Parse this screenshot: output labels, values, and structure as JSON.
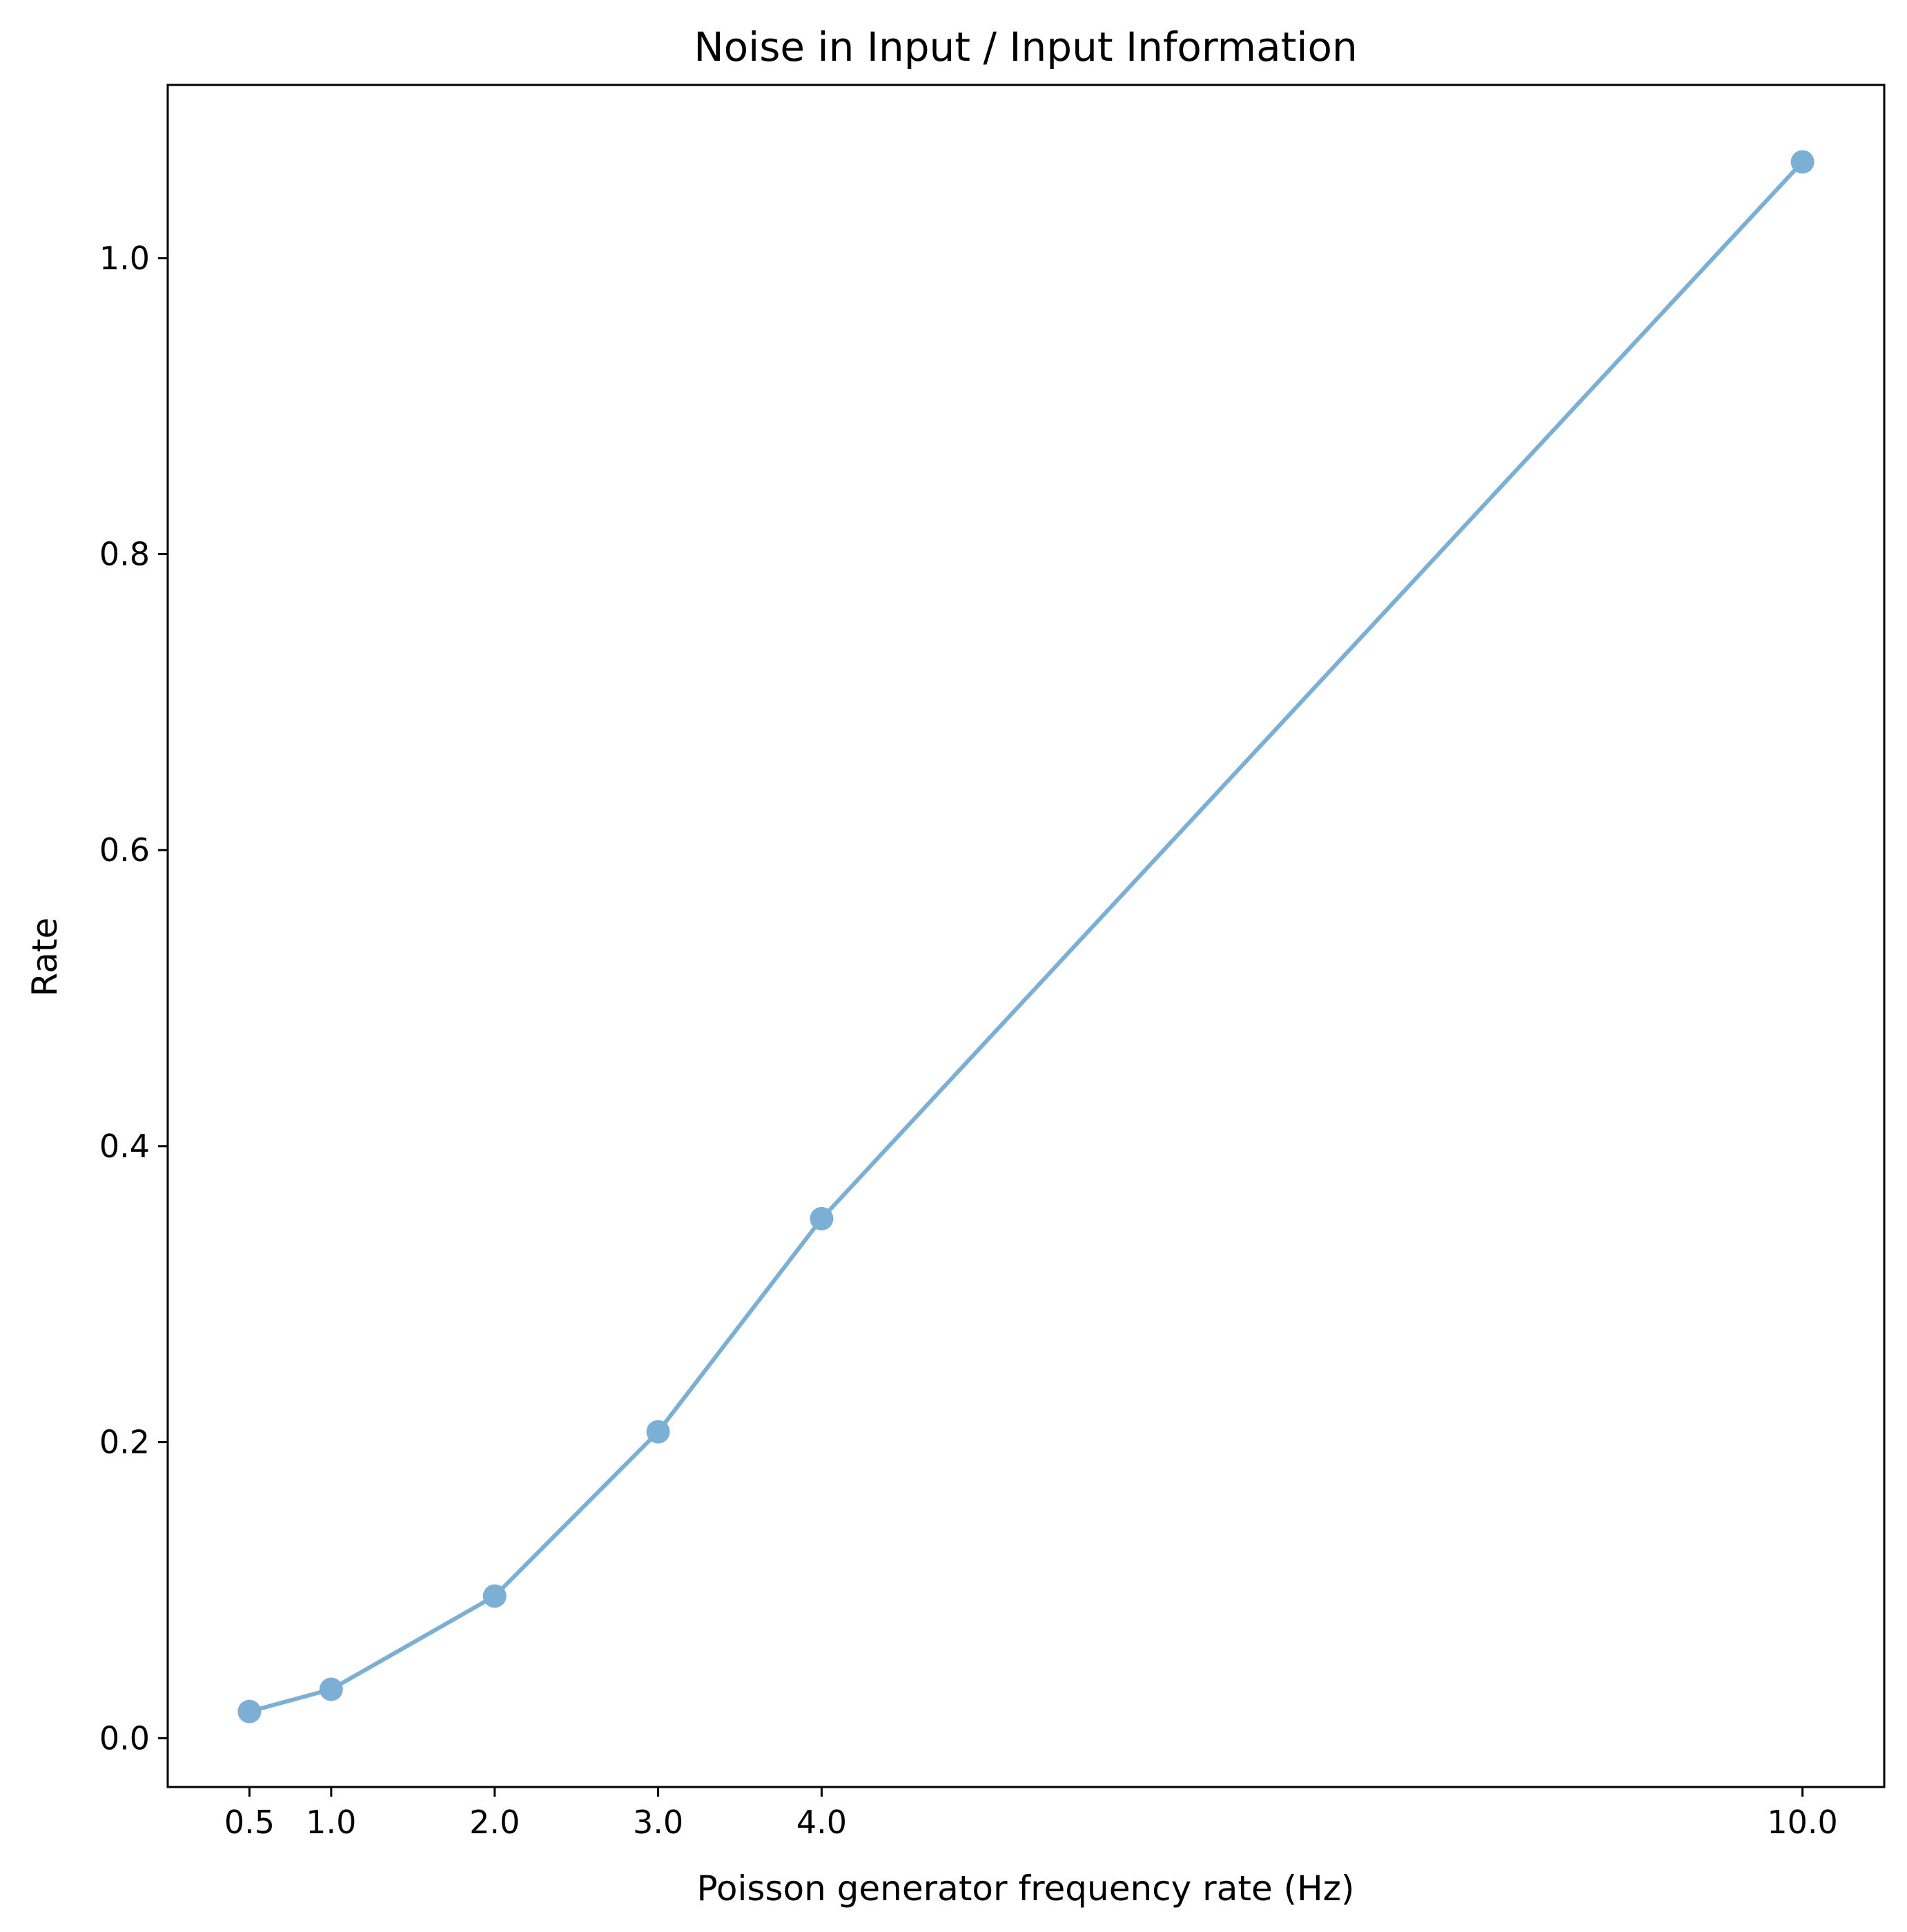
{
  "chart_data": {
    "type": "line",
    "title": "Noise in Input / Input Information",
    "xlabel": "Poisson generator frequency rate (Hz)",
    "ylabel": "Rate",
    "xlim": [
      0.0,
      10.5
    ],
    "ylim": [
      -0.033,
      1.117
    ],
    "x_ticks": [
      0.5,
      1.0,
      2.0,
      3.0,
      4.0,
      10.0
    ],
    "x_tick_labels": [
      "0.5",
      "1.0",
      "2.0",
      "3.0",
      "4.0",
      "10.0"
    ],
    "y_ticks": [
      0.0,
      0.2,
      0.4,
      0.6,
      0.8,
      1.0
    ],
    "y_tick_labels": [
      "0.0",
      "0.2",
      "0.4",
      "0.6",
      "0.8",
      "1.0"
    ],
    "grid": false,
    "legend": "none",
    "series": [
      {
        "x": [
          0.5,
          1.0,
          2.0,
          3.0,
          4.0,
          10.0
        ],
        "y": [
          0.018,
          0.033,
          0.096,
          0.207,
          0.351,
          1.065
        ],
        "color": "#7bafd4",
        "marker": "circle"
      }
    ]
  }
}
